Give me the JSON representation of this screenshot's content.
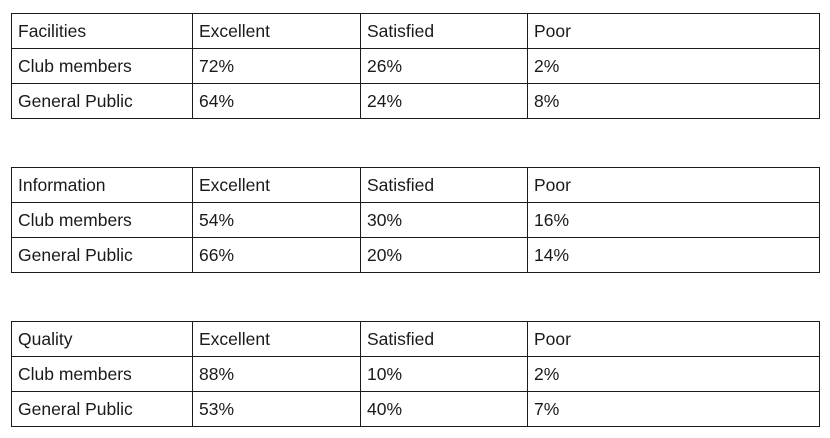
{
  "tables": [
    {
      "header": [
        "Facilities",
        "Excellent",
        "Satisfied",
        "Poor"
      ],
      "rows": [
        [
          "Club members",
          "72%",
          "26%",
          "2%"
        ],
        [
          "General Public",
          "64%",
          "24%",
          "8%"
        ]
      ]
    },
    {
      "header": [
        "Information",
        "Excellent",
        "Satisfied",
        "Poor"
      ],
      "rows": [
        [
          "Club members",
          "54%",
          "30%",
          "16%"
        ],
        [
          "General Public",
          "66%",
          "20%",
          "14%"
        ]
      ]
    },
    {
      "header": [
        "Quality",
        "Excellent",
        "Satisfied",
        "Poor"
      ],
      "rows": [
        [
          "Club members",
          "88%",
          "10%",
          "2%"
        ],
        [
          "General Public",
          "53%",
          "40%",
          "7%"
        ]
      ]
    }
  ]
}
